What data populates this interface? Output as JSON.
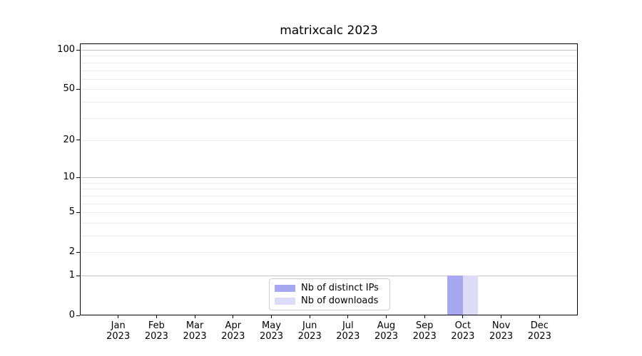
{
  "chart_data": {
    "type": "bar",
    "title": "matrixcalc 2023",
    "categories": [
      "Jan 2023",
      "Feb 2023",
      "Mar 2023",
      "Apr 2023",
      "May 2023",
      "Jun 2023",
      "Jul 2023",
      "Aug 2023",
      "Sep 2023",
      "Oct 2023",
      "Nov 2023",
      "Dec 2023"
    ],
    "month_labels": [
      "Jan",
      "Feb",
      "Mar",
      "Apr",
      "May",
      "Jun",
      "Jul",
      "Aug",
      "Sep",
      "Oct",
      "Nov",
      "Dec"
    ],
    "year_label": "2023",
    "series": [
      {
        "name": "Nb of distinct IPs",
        "color": "#a7a7f2",
        "values": [
          0,
          0,
          0,
          0,
          0,
          0,
          0,
          0,
          0,
          1,
          0,
          0
        ]
      },
      {
        "name": "Nb of downloads",
        "color": "#dcdcf9",
        "values": [
          0,
          0,
          0,
          0,
          0,
          0,
          0,
          0,
          0,
          1,
          0,
          0
        ]
      }
    ],
    "xlabel": "",
    "ylabel": "",
    "yscale": "log10(1+v) pseudo-log (zero shown)",
    "yticks": [
      0,
      1,
      2,
      5,
      10,
      20,
      50,
      100
    ],
    "y_major_gridlines": [
      1,
      10,
      100
    ],
    "y_minor_gridlines": [
      2,
      3,
      4,
      5,
      6,
      7,
      8,
      9,
      20,
      30,
      40,
      50,
      60,
      70,
      80,
      90
    ],
    "ylim": [
      0,
      112
    ],
    "grid": "horizontal major+minor",
    "legend_position": "lower center"
  }
}
